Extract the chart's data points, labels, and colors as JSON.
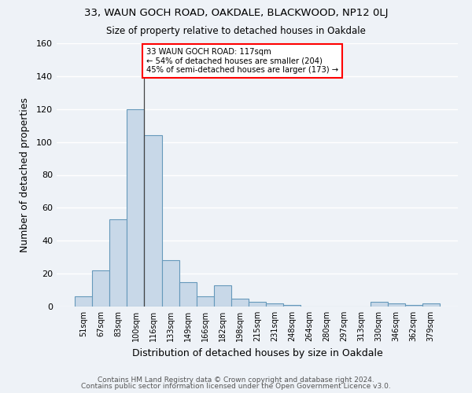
{
  "title1": "33, WAUN GOCH ROAD, OAKDALE, BLACKWOOD, NP12 0LJ",
  "title2": "Size of property relative to detached houses in Oakdale",
  "xlabel": "Distribution of detached houses by size in Oakdale",
  "ylabel": "Number of detached properties",
  "categories": [
    "51sqm",
    "67sqm",
    "83sqm",
    "100sqm",
    "116sqm",
    "133sqm",
    "149sqm",
    "166sqm",
    "182sqm",
    "198sqm",
    "215sqm",
    "231sqm",
    "248sqm",
    "264sqm",
    "280sqm",
    "297sqm",
    "313sqm",
    "330sqm",
    "346sqm",
    "362sqm",
    "379sqm"
  ],
  "values": [
    6,
    22,
    53,
    120,
    104,
    28,
    15,
    6,
    13,
    5,
    3,
    2,
    1,
    0,
    0,
    0,
    0,
    3,
    2,
    1,
    2
  ],
  "bar_color": "#c8d8e8",
  "bar_edge_color": "#6699bb",
  "bar_edge_width": 0.8,
  "annotation_text": "33 WAUN GOCH ROAD: 117sqm\n← 54% of detached houses are smaller (204)\n45% of semi-detached houses are larger (173) →",
  "annotation_box_color": "white",
  "annotation_box_edge_color": "red",
  "vline_color": "#444444",
  "ylim": [
    0,
    160
  ],
  "yticks": [
    0,
    20,
    40,
    60,
    80,
    100,
    120,
    140,
    160
  ],
  "background_color": "#eef2f7",
  "grid_color": "white",
  "footer1": "Contains HM Land Registry data © Crown copyright and database right 2024.",
  "footer2": "Contains public sector information licensed under the Open Government Licence v3.0."
}
